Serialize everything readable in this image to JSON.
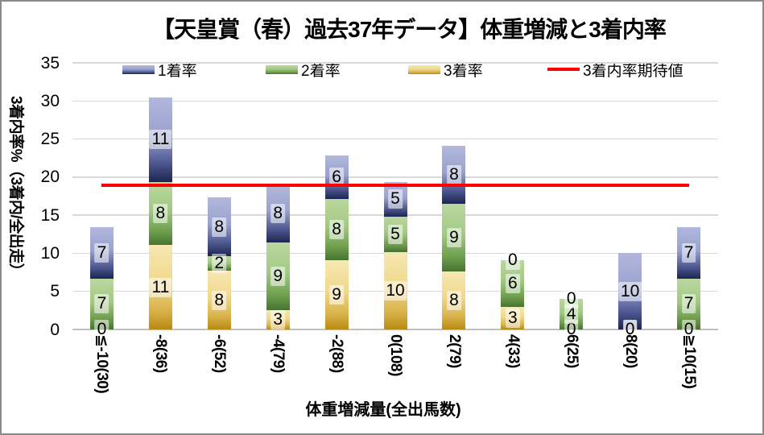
{
  "title": "【天皇賞（春）過去37年データ】体重増減と3着内率",
  "legend": {
    "items": [
      {
        "label": "1着率",
        "swatch": "gradient",
        "series_key": "first"
      },
      {
        "label": "2着率",
        "swatch": "gradient",
        "series_key": "second"
      },
      {
        "label": "3着率",
        "swatch": "gradient",
        "series_key": "third"
      },
      {
        "label": "3着内率期待値",
        "swatch": "line",
        "series_key": "expected"
      }
    ]
  },
  "y_axis": {
    "title": "3着内率%（3着内/全出走）",
    "ticks": [
      0,
      5,
      10,
      15,
      20,
      25,
      30,
      35
    ],
    "min": 0,
    "max": 35
  },
  "x_axis": {
    "title": "体重増減量(全出馬数)"
  },
  "chart_data": {
    "type": "bar",
    "stacked": true,
    "title": "【天皇賞（春）過去37年データ】体重増減と3着内率",
    "xlabel": "体重増減量(全出馬数)",
    "ylabel": "3着内率%（3着内/全出走）",
    "ylim": [
      0,
      35
    ],
    "grid": true,
    "legend_position": "top",
    "categories": [
      "≦-10(30)",
      "-8(36)",
      "-6(52)",
      "-4(79)",
      "-2(88)",
      "0(108)",
      "2(79)",
      "4(33)",
      "6(25)",
      "8(20)",
      "≧10(15)"
    ],
    "series": [
      {
        "name": "3着率",
        "stack_position": "bottom",
        "color_key": "third",
        "values_percent": [
          0,
          11.1,
          7.7,
          2.5,
          9.1,
          10.2,
          7.6,
          3.0,
          0,
          0,
          0
        ],
        "data_labels": [
          "0",
          "11",
          "8",
          "3",
          "9",
          "10",
          "8",
          "3",
          "0",
          "0",
          "0"
        ]
      },
      {
        "name": "2着率",
        "stack_position": "middle",
        "color_key": "second",
        "values_percent": [
          6.7,
          8.3,
          1.9,
          8.9,
          8.0,
          4.6,
          8.9,
          6.1,
          4.0,
          0,
          6.7
        ],
        "data_labels": [
          "7",
          "8",
          "2",
          "9",
          "8",
          "5",
          "9",
          "6",
          "4",
          "0",
          "7"
        ]
      },
      {
        "name": "1着率",
        "stack_position": "top",
        "color_key": "first",
        "values_percent": [
          6.7,
          11.1,
          7.7,
          7.6,
          5.7,
          4.6,
          7.6,
          0,
          0,
          10.0,
          6.7
        ],
        "data_labels": [
          "7",
          "11",
          "8",
          "8",
          "6",
          "5",
          "8",
          "0",
          "0",
          "10",
          "7"
        ]
      }
    ],
    "totals_percent": [
      13.3,
      30.6,
      17.3,
      19.0,
      22.7,
      19.4,
      24.1,
      9.1,
      4.0,
      10.0,
      13.3
    ],
    "expected_line": {
      "name": "3着内率期待値",
      "value_percent": 18.9
    }
  },
  "colors": {
    "first": {
      "stops": [
        "#b2b8dc",
        "#9aa2ce",
        "#4d578f",
        "#1c2450"
      ]
    },
    "second": {
      "stops": [
        "#bad79f",
        "#a3c985",
        "#6f9f4d",
        "#477331"
      ]
    },
    "third": {
      "stops": [
        "#f7e8b2",
        "#f0d88c",
        "#d8b24a",
        "#b98a12"
      ]
    },
    "expected": "#ff0000",
    "gridline": "#d9d9d9",
    "axis_line": "#c0c0c0",
    "chart_border": "#8a8a8a",
    "label_box_bg": "rgba(255,255,255,0.55)",
    "text": "#000000"
  }
}
